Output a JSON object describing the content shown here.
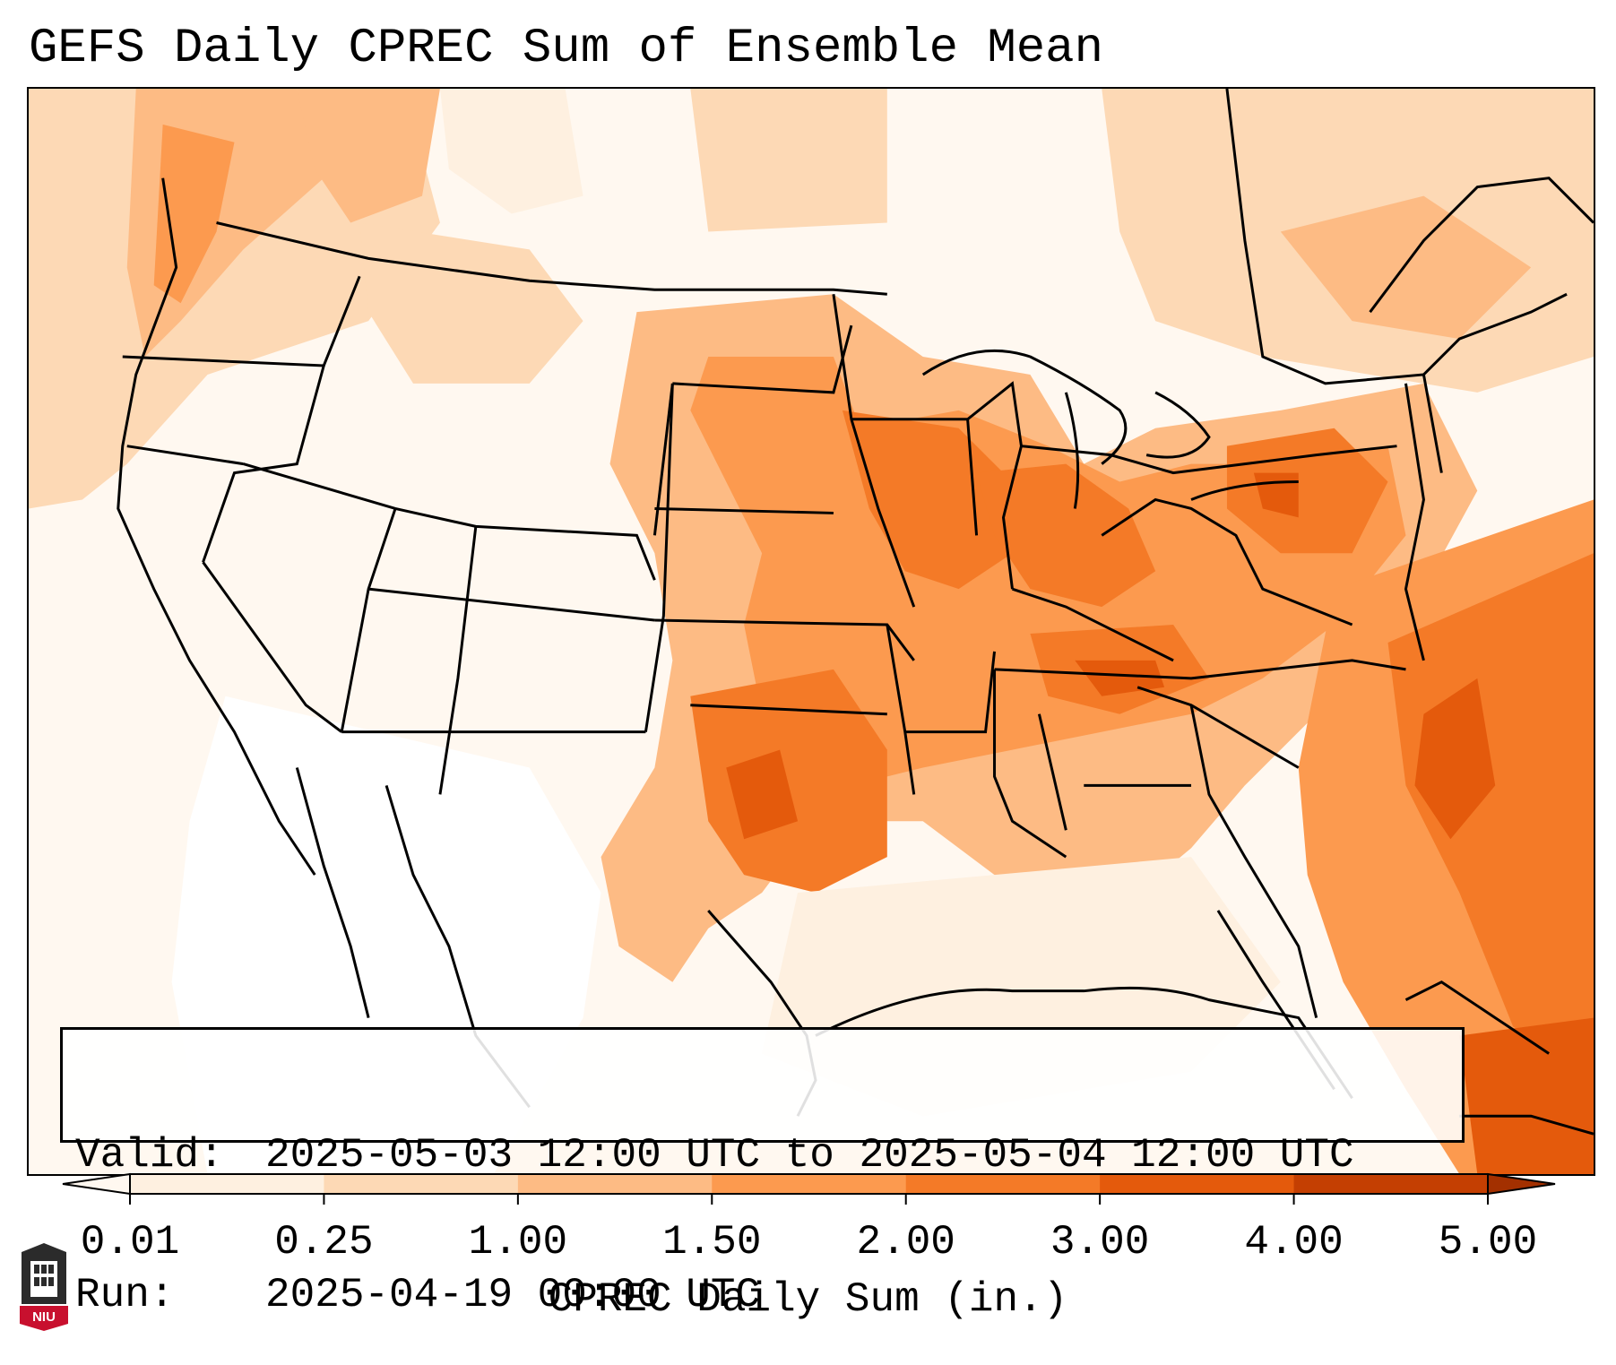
{
  "title": "GEFS Daily CPREC Sum of Ensemble Mean",
  "info_box": {
    "valid_label": "Valid:",
    "valid_value": "2025-05-03 12:00 UTC to 2025-05-04 12:00 UTC",
    "run_label": "Run:",
    "run_value": "2025-04-19 00:00 UTC"
  },
  "colorbar": {
    "title": "CPREC Daily Sum (in.)",
    "ticks": [
      "0.01",
      "0.25",
      "1.00",
      "1.50",
      "2.00",
      "3.00",
      "4.00",
      "5.00"
    ],
    "colors": [
      "#fef0e0",
      "#fdd9b5",
      "#fdbb84",
      "#fc9a4f",
      "#f47a27",
      "#e45a0c",
      "#c43f02"
    ],
    "under_color": "#fff8f0",
    "over_color": "#a33000",
    "extend": "both"
  },
  "logo": {
    "text": "NIU"
  },
  "colors": {
    "frame": "#000000",
    "state_lines": "#000000",
    "background": "#ffffff"
  }
}
